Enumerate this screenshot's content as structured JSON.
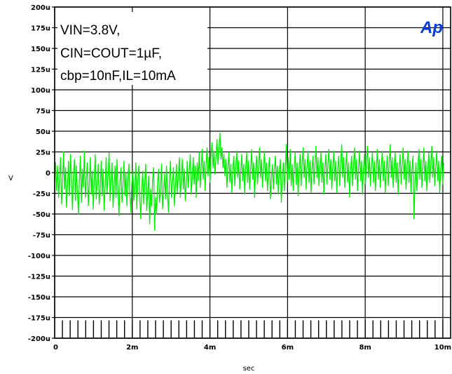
{
  "chart_data": {
    "type": "line",
    "title": "",
    "xlabel": "sec",
    "ylabel": "V",
    "xlim": [
      0,
      0.0102
    ],
    "ylim": [
      -0.0002,
      0.0002
    ],
    "x_ticks": [
      {
        "value": 0,
        "label": "0"
      },
      {
        "value": 0.002,
        "label": "2m"
      },
      {
        "value": 0.004,
        "label": "4m"
      },
      {
        "value": 0.006,
        "label": "6m"
      },
      {
        "value": 0.008,
        "label": "8m"
      },
      {
        "value": 0.01,
        "label": "10m"
      }
    ],
    "y_ticks": [
      {
        "value": 0.0002,
        "label": "200u"
      },
      {
        "value": 0.000175,
        "label": "175u"
      },
      {
        "value": 0.00015,
        "label": "150u"
      },
      {
        "value": 0.000125,
        "label": "125u"
      },
      {
        "value": 0.0001,
        "label": "100u"
      },
      {
        "value": 7.5e-05,
        "label": "75u"
      },
      {
        "value": 5e-05,
        "label": "50u"
      },
      {
        "value": 2.5e-05,
        "label": "25u"
      },
      {
        "value": 0,
        "label": "0"
      },
      {
        "value": -2.5e-05,
        "label": "-25u"
      },
      {
        "value": -5e-05,
        "label": "-50u"
      },
      {
        "value": -7.5e-05,
        "label": "-75u"
      },
      {
        "value": -0.0001,
        "label": "-100u"
      },
      {
        "value": -0.000125,
        "label": "-125u"
      },
      {
        "value": -0.00015,
        "label": "-150u"
      },
      {
        "value": -0.000175,
        "label": "-175u"
      },
      {
        "value": -0.0002,
        "label": "-200u"
      }
    ],
    "grid": true,
    "annotations": [
      "VIN=3.8V,",
      "CIN=COUT=1µF,",
      "cbp=10nF,IL=10mA"
    ],
    "logo_text": "Ap",
    "series": [
      {
        "color": "#00ee00",
        "x_start": 0,
        "x_step": 2.55e-05,
        "values": [
          -1e-05,
          1.2e-05,
          -2.2e-05,
          8e-06,
          -3e-05,
          -5e-06,
          1.8e-05,
          -3.8e-05,
          -1.2e-05,
          2.5e-05,
          -2e-05,
          6e-06,
          -4.2e-05,
          -1.6e-05,
          1.4e-05,
          -2.8e-05,
          2.2e-05,
          -8e-06,
          -4.5e-05,
          -2e-06,
          1.6e-05,
          -3.4e-05,
          8e-06,
          -2.4e-05,
          -5e-05,
          -1e-05,
          2e-05,
          -3.6e-05,
          4e-06,
          -1.8e-05,
          2.6e-05,
          -3e-05,
          -6e-06,
          1.2e-05,
          -4e-05,
          -1.4e-05,
          1.8e-05,
          -2.6e-05,
          2e-06,
          -4.4e-05,
          -8e-06,
          2.2e-05,
          -3.2e-05,
          -1.2e-05,
          1e-05,
          -3.8e-05,
          -2e-05,
          1.4e-05,
          -2.8e-05,
          4e-06,
          -4.6e-05,
          -1.6e-05,
          1.8e-05,
          -2.4e-05,
          -4e-06,
          2.4e-05,
          -3.4e-05,
          -1e-05,
          1.2e-05,
          -4.2e-05,
          -1.8e-05,
          8e-06,
          -3e-05,
          1.6e-05,
          -2.2e-05,
          -5.2e-05,
          -1.2e-05,
          6e-06,
          -3.6e-05,
          -1.6e-05,
          1.4e-05,
          -2.8e-05,
          0.0,
          -4e-05,
          -8e-06,
          1e-05,
          -2.6e-05,
          -4.8e-05,
          -1.4e-05,
          4e-06,
          -3.4e-05,
          -2e-05,
          1.2e-05,
          -4.4e-05,
          -1e-05,
          8e-06,
          -3e-05,
          -5.6e-05,
          -1.8e-05,
          2e-06,
          -3.8e-05,
          -1.2e-05,
          1e-05,
          -4.6e-05,
          -2.4e-05,
          -4e-06,
          -6.2e-05,
          -2e-05,
          -4e-05,
          -8e-06,
          6e-06,
          -7e-05,
          -3e-05,
          -5e-05,
          -1.2e-05,
          4e-06,
          -3.6e-05,
          -1.8e-05,
          1e-05,
          -4.4e-05,
          -2.2e-05,
          -2e-06,
          -3.2e-05,
          8e-06,
          -2.6e-05,
          -4.8e-05,
          -1e-05,
          1.4e-05,
          -3e-05,
          -1.4e-05,
          6e-06,
          -4e-05,
          -1.8e-05,
          1e-05,
          -2.4e-05,
          -4e-06,
          1.8e-05,
          -3e-05,
          -8e-06,
          1.6e-05,
          -2e-05,
          4e-06,
          -3.4e-05,
          -1.2e-05,
          1.4e-05,
          -1.8e-05,
          2e-06,
          2.2e-05,
          -2.6e-05,
          -6e-06,
          1.8e-05,
          -1.4e-05,
          8e-06,
          -3e-05,
          1.2e-05,
          -1e-05,
          2.4e-05,
          -1.8e-05,
          4e-06,
          2.8e-05,
          -8e-06,
          1.4e-05,
          -2.2e-05,
          1e-05,
          3e-05,
          -4e-06,
          1.8e-05,
          -1.2e-05,
          2.2e-05,
          3.6e-05,
          6e-06,
          2.6e-05,
          -2e-06,
          1.8e-05,
          4e-05,
          1e-05,
          2.8e-05,
          4.8e-05,
          1.6e-05,
          3e-05,
          6e-06,
          2.2e-05,
          -4e-06,
          1.6e-05,
          -1.8e-05,
          6e-06,
          2.4e-05,
          -1.2e-05,
          1e-05,
          -2.4e-05,
          4e-06,
          2e-05,
          -1.6e-05,
          8e-06,
          2.6e-05,
          -6e-06,
          1.4e-05,
          -2e-05,
          2e-06,
          2.2e-05,
          -1e-05,
          1e-05,
          -2.6e-05,
          6e-06,
          2.4e-05,
          -1.2e-05,
          1.4e-05,
          -2e-05,
          4e-06,
          2.8e-05,
          -8e-06,
          1.2e-05,
          -3e-05,
          2e-06,
          2e-05,
          -1.4e-05,
          8e-06,
          3e-05,
          -6e-06,
          1.6e-05,
          -1.8e-05,
          6e-06,
          2.6e-05,
          -1e-05,
          1.2e-05,
          -2.2e-05,
          4e-06,
          1.8e-05,
          -3.2e-05,
          -8e-06,
          1e-05,
          -2e-05,
          4e-06,
          2e-05,
          -1.4e-05,
          8e-06,
          -2.6e-05,
          2e-06,
          1.6e-05,
          -3.6e-05,
          -8e-06,
          1.2e-05,
          -2.2e-05,
          4e-06,
          3.4e-05,
          -1.2e-05,
          1.8e-05,
          -8e-06,
          2.8e-05,
          -1.6e-05,
          1e-05,
          -2.2e-05,
          6e-06,
          2.4e-05,
          -1.4e-05,
          1.2e-05,
          -2.8e-05,
          4e-06,
          2.2e-05,
          -1.6e-05,
          1e-05,
          3e-05,
          -6e-06,
          1.6e-05,
          -2e-05,
          8e-06,
          2.6e-05,
          -1.2e-05,
          1.4e-05,
          -2.4e-05,
          4e-06,
          2e-05,
          -1.4e-05,
          1e-05,
          3.2e-05,
          -6e-06,
          1.8e-05,
          -1.6e-05,
          8e-06,
          2.4e-05,
          -1.2e-05,
          1.2e-05,
          -2.6e-05,
          6e-06,
          2.2e-05,
          -1.4e-05,
          1e-05,
          2.8e-05,
          -8e-06,
          1.6e-05,
          -2e-05,
          6e-06,
          2.6e-05,
          -1e-05,
          1.4e-05,
          -2.4e-05,
          4e-06,
          2e-05,
          -1.6e-05,
          1.2e-05,
          3.4e-05,
          -6e-06,
          1.8e-05,
          -1.8e-05,
          8e-06,
          2.4e-05,
          -1.2e-05,
          1.2e-05,
          -3e-05,
          4e-06,
          2e-05,
          -1.6e-05,
          1e-05,
          3e-05,
          -8e-06,
          1.6e-05,
          -2.2e-05,
          6e-06,
          2.6e-05,
          -1e-05,
          1.4e-05,
          -2.6e-05,
          4e-06,
          2.2e-05,
          -1.4e-05,
          1e-05,
          3.2e-05,
          -6e-06,
          1.8e-05,
          -1.6e-05,
          8e-06,
          2.4e-05,
          -1.2e-05,
          1.4e-05,
          -2.2e-05,
          6e-06,
          2.8e-05,
          -8e-06,
          1.6e-05,
          -1.8e-05,
          8e-06,
          2.6e-05,
          -1e-05,
          1.4e-05,
          -2.4e-05,
          4e-06,
          2e-05,
          -1.6e-05,
          1.2e-05,
          3.4e-05,
          -6e-06,
          1.8e-05,
          -1.8e-05,
          8e-06,
          2.4e-05,
          -1.2e-05,
          1.2e-05,
          -2.6e-05,
          6e-06,
          2.2e-05,
          -1.4e-05,
          1e-05,
          3e-05,
          -8e-06,
          1.6e-05,
          -2e-05,
          6e-06,
          2.6e-05,
          -1.2e-05,
          1.4e-05,
          -2.4e-05,
          4e-06,
          2e-05,
          -5.6e-05,
          -1.4e-05,
          1.2e-05,
          -2.2e-05,
          6e-06,
          2.8e-05,
          -8e-06,
          1.6e-05,
          -1.8e-05,
          8e-06,
          3e-05,
          -1e-05,
          1.4e-05,
          -2.2e-05,
          4e-06,
          2.4e-05,
          -1.2e-05,
          1e-05,
          3.2e-05,
          -6e-06,
          1.8e-05,
          -1.6e-05,
          8e-06,
          2.6e-05,
          -1e-05,
          1.4e-05,
          -2.4e-05,
          4e-06,
          2e-05,
          -1.4e-05,
          1.2e-05
        ]
      }
    ]
  }
}
